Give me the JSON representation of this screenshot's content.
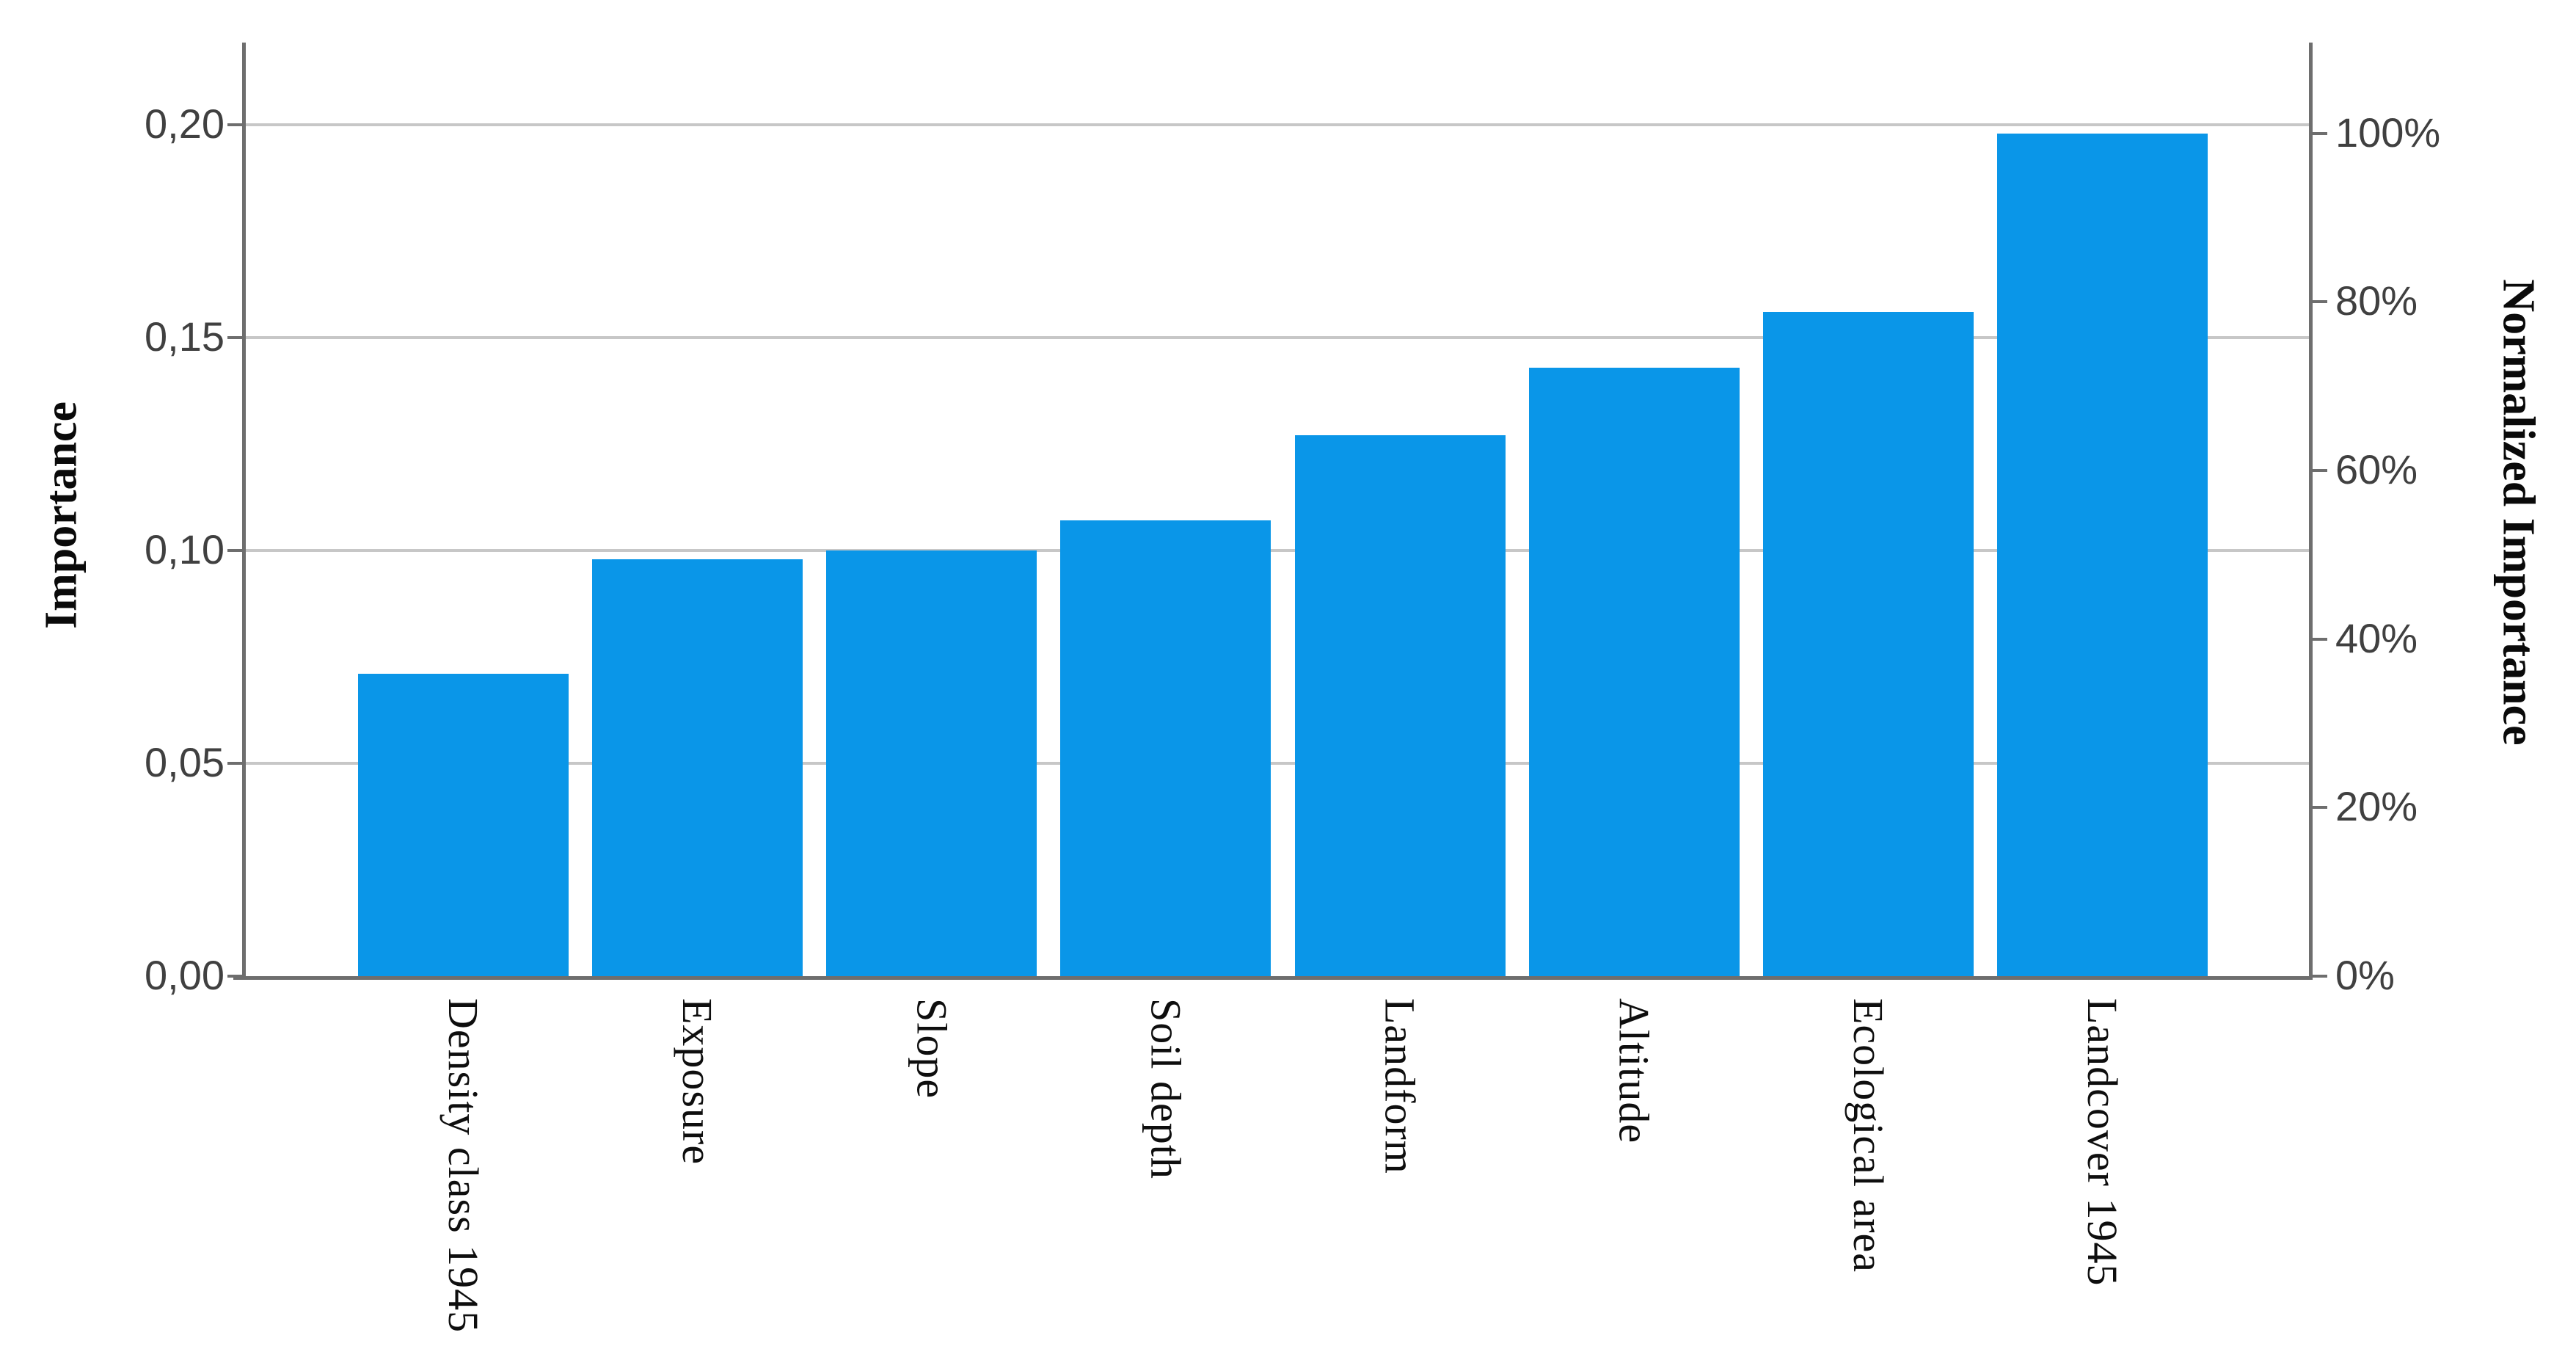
{
  "chart_data": {
    "type": "bar",
    "title": "",
    "categories": [
      "Density class 1945",
      "Exposure",
      "Slope",
      "Soil depth",
      "Landform",
      "Altitude",
      "Ecological area",
      "Landcover 1945"
    ],
    "values": [
      0.071,
      0.098,
      0.1,
      0.107,
      0.127,
      0.143,
      0.156,
      0.198
    ],
    "normalized_values_percent": [
      35.9,
      49.5,
      50.5,
      54.0,
      64.1,
      72.2,
      78.8,
      100.0
    ],
    "ylabel_left": "Importance",
    "ylabel_right": "Normalized Importance",
    "xlabel": "",
    "ylim_left": [
      0,
      0.2
    ],
    "ylim_right_percent": [
      0,
      100
    ],
    "right_axis_normalization_max": 0.198,
    "y_left_ticks": [
      {
        "value": 0.0,
        "label": "0,00"
      },
      {
        "value": 0.05,
        "label": "0,05"
      },
      {
        "value": 0.1,
        "label": "0,10"
      },
      {
        "value": 0.15,
        "label": "0,15"
      },
      {
        "value": 0.2,
        "label": "0,20"
      }
    ],
    "y_right_ticks": [
      {
        "percent": 0,
        "label": "0%"
      },
      {
        "percent": 20,
        "label": "20%"
      },
      {
        "percent": 40,
        "label": "40%"
      },
      {
        "percent": 60,
        "label": "60%"
      },
      {
        "percent": 80,
        "label": "80%"
      },
      {
        "percent": 100,
        "label": "100%"
      }
    ],
    "decimal_separator": ",",
    "grid": "horizontal",
    "legend": "none",
    "colors": {
      "bar": "#0a96e8",
      "axis": "#6e6e6e",
      "gridline": "#c7c7c7",
      "tick_text": "#404040",
      "label_text": "#0e0e0e",
      "background": "#ffffff"
    }
  }
}
